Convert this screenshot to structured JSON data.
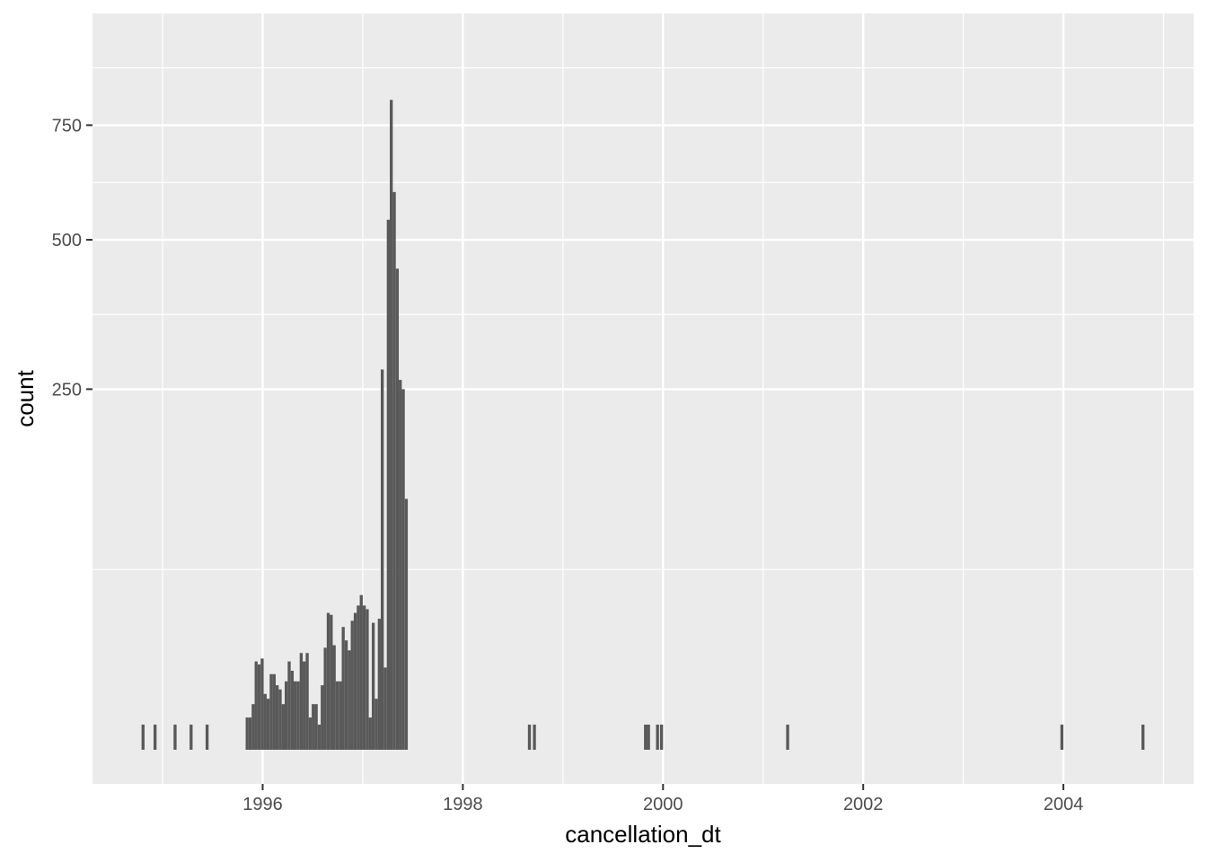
{
  "chart_data": {
    "type": "bar",
    "xlabel": "cancellation_dt",
    "ylabel": "count",
    "x_axis": {
      "kind": "date-year",
      "range": [
        1994.3,
        2005.3
      ],
      "tick_labels": [
        "1996",
        "1998",
        "2000",
        "2002",
        "2004"
      ],
      "ticks": [
        1996,
        1998,
        2000,
        2002,
        2004
      ]
    },
    "y_axis": {
      "scale": "sqrt",
      "range": [
        0,
        868
      ],
      "tick_labels": [
        "250",
        "500",
        "750"
      ],
      "ticks": [
        250,
        500,
        750
      ]
    },
    "grid": true,
    "bar_color": "#595959",
    "panel_color": "#ebebeb",
    "bins": [
      [
        1994.79,
        1
      ],
      [
        1994.91,
        1
      ],
      [
        1995.11,
        1
      ],
      [
        1995.27,
        1
      ],
      [
        1995.43,
        1
      ],
      [
        1995.83,
        2
      ],
      [
        1995.86,
        2
      ],
      [
        1995.89,
        4
      ],
      [
        1995.92,
        15
      ],
      [
        1995.95,
        14
      ],
      [
        1995.98,
        16
      ],
      [
        1996.01,
        6
      ],
      [
        1996.04,
        5
      ],
      [
        1996.07,
        11
      ],
      [
        1996.1,
        11
      ],
      [
        1996.13,
        8
      ],
      [
        1996.16,
        7
      ],
      [
        1996.19,
        4
      ],
      [
        1996.22,
        9
      ],
      [
        1996.25,
        15
      ],
      [
        1996.28,
        12
      ],
      [
        1996.31,
        9
      ],
      [
        1996.34,
        9
      ],
      [
        1996.37,
        18
      ],
      [
        1996.4,
        15
      ],
      [
        1996.43,
        18
      ],
      [
        1996.46,
        2
      ],
      [
        1996.49,
        4
      ],
      [
        1996.52,
        4
      ],
      [
        1996.55,
        1
      ],
      [
        1996.58,
        8
      ],
      [
        1996.61,
        20
      ],
      [
        1996.64,
        36
      ],
      [
        1996.67,
        35
      ],
      [
        1996.7,
        21
      ],
      [
        1996.73,
        9
      ],
      [
        1996.76,
        9
      ],
      [
        1996.79,
        29
      ],
      [
        1996.82,
        23
      ],
      [
        1996.85,
        19
      ],
      [
        1996.88,
        32
      ],
      [
        1996.91,
        36
      ],
      [
        1996.94,
        40
      ],
      [
        1996.97,
        46
      ],
      [
        1997.0,
        40
      ],
      [
        1997.03,
        38
      ],
      [
        1997.06,
        2
      ],
      [
        1997.09,
        31
      ],
      [
        1997.12,
        5
      ],
      [
        1997.15,
        33
      ],
      [
        1997.18,
        278
      ],
      [
        1997.21,
        13
      ],
      [
        1997.24,
        540
      ],
      [
        1997.27,
        812
      ],
      [
        1997.3,
        598
      ],
      [
        1997.33,
        445
      ],
      [
        1997.36,
        263
      ],
      [
        1997.39,
        250
      ],
      [
        1997.42,
        121
      ],
      [
        1998.65,
        1
      ],
      [
        1998.7,
        1
      ],
      [
        1999.81,
        1
      ],
      [
        1999.84,
        1
      ],
      [
        1999.93,
        1
      ],
      [
        1999.97,
        1
      ],
      [
        2001.23,
        1
      ],
      [
        2003.97,
        1
      ],
      [
        2004.78,
        1
      ]
    ]
  }
}
